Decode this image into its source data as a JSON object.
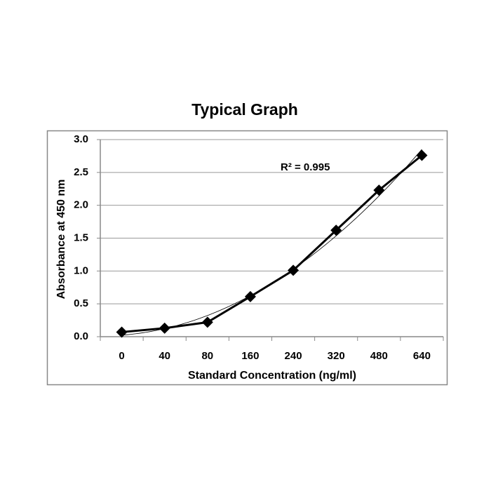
{
  "chart_data": {
    "type": "line",
    "title": "Typical Graph",
    "x_label": "Standard Concentration (ng/ml)",
    "y_label": "Absorbance at 450 nm",
    "categories": [
      "0",
      "40",
      "80",
      "160",
      "240",
      "320",
      "480",
      "640"
    ],
    "series": [
      {
        "color": "#000000",
        "marker": "diamond",
        "values": [
          0.07,
          0.13,
          0.22,
          0.61,
          1.01,
          1.62,
          2.23,
          2.76
        ]
      }
    ],
    "ylim": [
      0,
      3
    ],
    "yticks": [
      {
        "value": 0,
        "label": "0.0"
      },
      {
        "value": 0.5,
        "label": "0.5"
      },
      {
        "value": 1,
        "label": "1.0"
      },
      {
        "value": 1.5,
        "label": "1.5"
      },
      {
        "value": 2,
        "label": "2.0"
      },
      {
        "value": 2.5,
        "label": "2.5"
      },
      {
        "value": 3,
        "label": "3.0"
      }
    ],
    "grid": true,
    "trendline": "polynomial",
    "annotation": "R² = 0.995"
  }
}
